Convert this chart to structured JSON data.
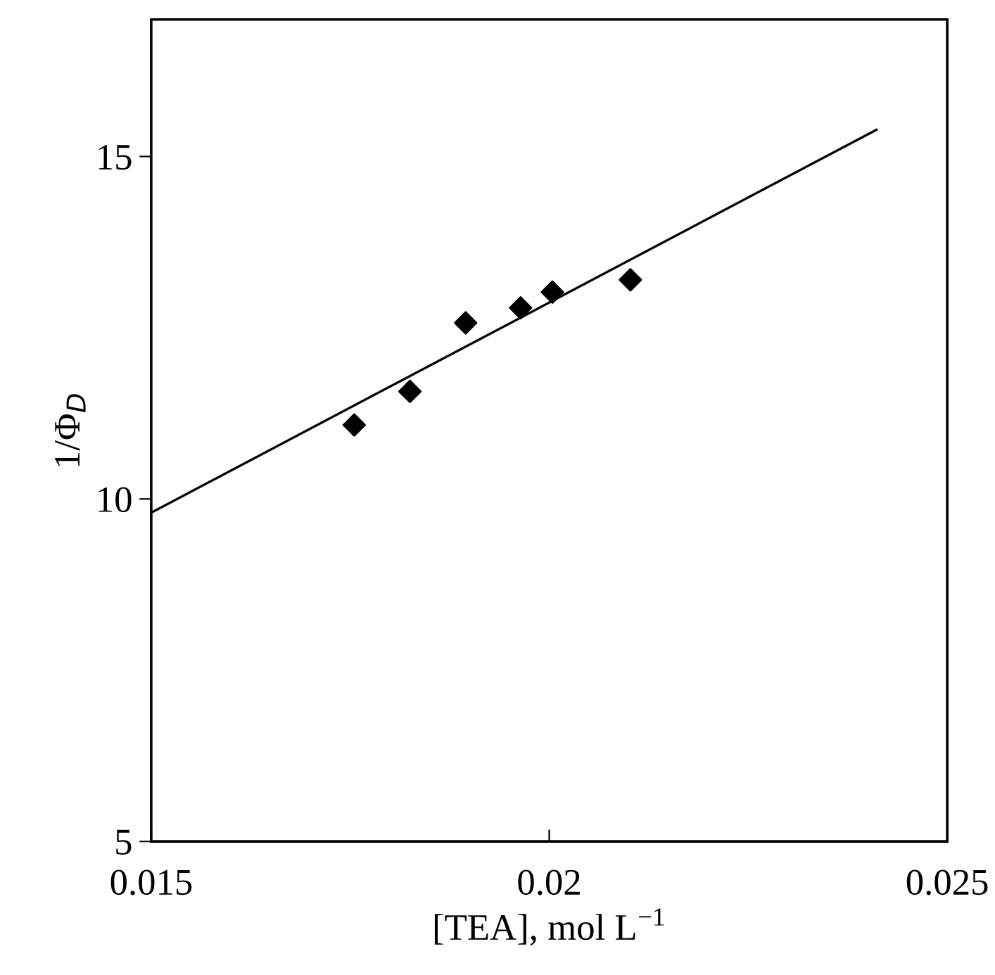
{
  "chart_data": {
    "type": "scatter",
    "xlabel": "[TEA], mol L$^{−1}$",
    "ylabel": "1/Φ$_{D}$",
    "xlim": [
      0.015,
      0.025
    ],
    "ylim": [
      5,
      17
    ],
    "xticks": [
      0.015,
      0.02,
      0.025
    ],
    "yticks": [
      5,
      10,
      15
    ],
    "grid": false,
    "legend": false,
    "series": [
      {
        "marker": "diamond",
        "color": "#000000",
        "x": [
          0.01755,
          0.01825,
          0.01895,
          0.01964,
          0.02004,
          0.02102
        ],
        "values": [
          11.08,
          11.57,
          12.57,
          12.79,
          13.02,
          13.2
        ]
      },
      {
        "type": "line",
        "marker": "none",
        "color": "#000000",
        "line_style": "solid",
        "x": [
          0.015,
          0.02411
        ],
        "values": [
          9.8,
          15.39
        ]
      }
    ]
  }
}
